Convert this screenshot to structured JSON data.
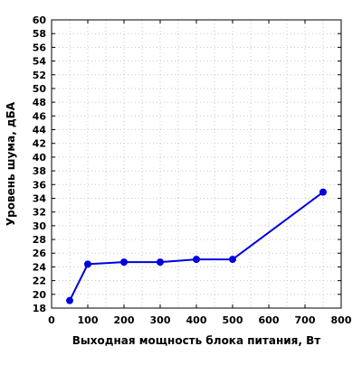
{
  "chart_data": {
    "type": "line",
    "title": "",
    "xlabel": "Выходная мощность блока питания, Вт",
    "ylabel": "Уровень шума, дБА",
    "xlim": [
      0,
      800
    ],
    "ylim": [
      18,
      60
    ],
    "xticks": [
      0,
      100,
      200,
      300,
      400,
      500,
      600,
      700,
      800
    ],
    "yticks": [
      18,
      20,
      22,
      24,
      26,
      28,
      30,
      32,
      34,
      36,
      38,
      40,
      42,
      44,
      46,
      48,
      50,
      52,
      54,
      56,
      58,
      60
    ],
    "grid": true,
    "series": [
      {
        "color": "#0000dd",
        "x": [
          50,
          100,
          200,
          300,
          400,
          500,
          750
        ],
        "y": [
          19.1,
          24.4,
          24.7,
          24.7,
          25.1,
          25.1,
          34.9
        ]
      }
    ]
  }
}
